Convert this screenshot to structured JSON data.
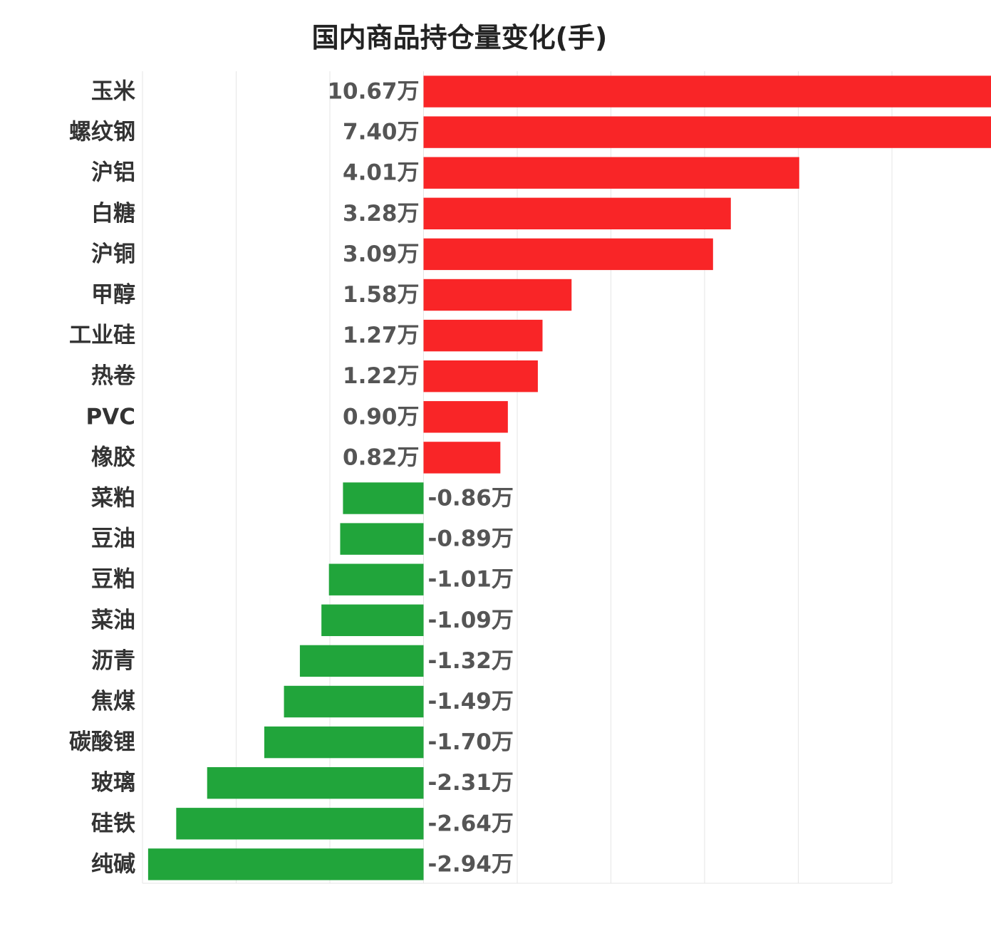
{
  "chart_data": {
    "type": "bar",
    "orientation": "horizontal",
    "title": "国内商品持仓量变化(手)",
    "value_suffix": "万",
    "xlim": [
      -3,
      5
    ],
    "grid": true,
    "positive_color": "#f92527",
    "negative_color": "#21a53b",
    "categories": [
      "玉米",
      "螺纹钢",
      "沪铝",
      "白糖",
      "沪铜",
      "甲醇",
      "工业硅",
      "热卷",
      "PVC",
      "橡胶",
      "菜粕",
      "豆油",
      "豆粕",
      "菜油",
      "沥青",
      "焦煤",
      "碳酸锂",
      "玻璃",
      "硅铁",
      "纯碱"
    ],
    "values": [
      10.67,
      7.4,
      4.01,
      3.28,
      3.09,
      1.58,
      1.27,
      1.22,
      0.9,
      0.82,
      -0.86,
      -0.89,
      -1.01,
      -1.09,
      -1.32,
      -1.49,
      -1.7,
      -2.31,
      -2.64,
      -2.94
    ],
    "value_labels": [
      "10.67万",
      "7.40万",
      "4.01万",
      "3.28万",
      "3.09万",
      "1.58万",
      "1.27万",
      "1.22万",
      "0.90万",
      "0.82万",
      "-0.86万",
      "-0.89万",
      "-1.01万",
      "-1.09万",
      "-1.32万",
      "-1.49万",
      "-1.70万",
      "-2.31万",
      "-2.64万",
      "-2.94万"
    ]
  }
}
